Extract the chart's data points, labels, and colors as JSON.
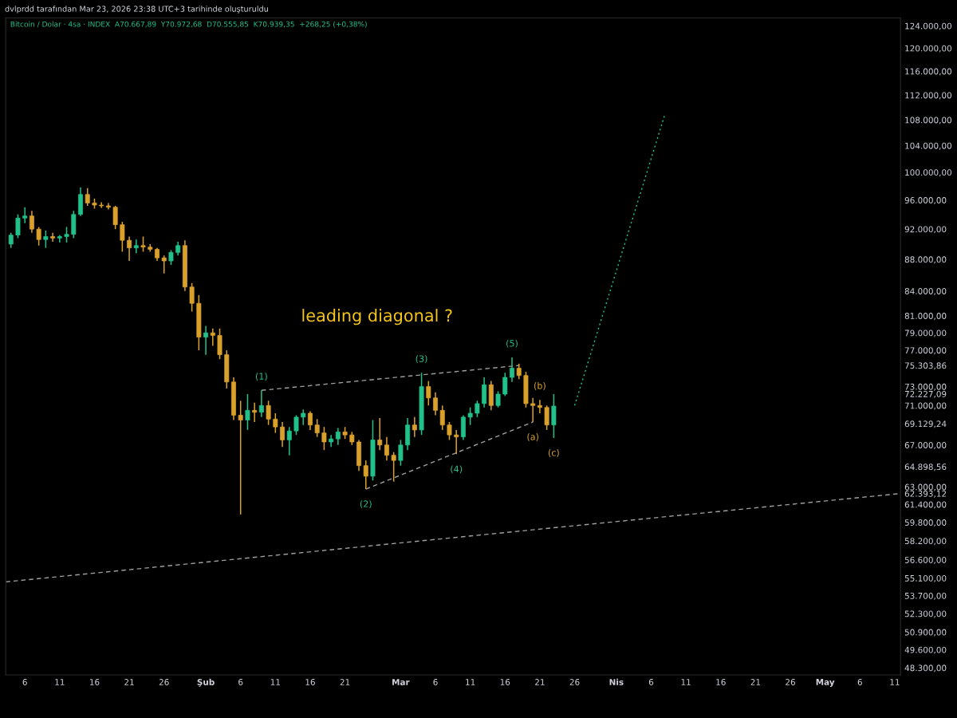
{
  "chart_data": {
    "type": "candlestick",
    "title": "dvlprdd tarafından Mar 23, 2026 23:38 UTC+3 tarihinde oluşturuldu",
    "subtitle": "Bitcoin / Dolar · 4sa · INDEX  A70.667,89  Y70.972,68  D70.555,85  K70.939,35  +268,25 (+0,38%)",
    "log": true,
    "grid": false,
    "legend": false,
    "xlim": [
      "2026-01-03T06:00",
      "2026-05-11T20:00"
    ],
    "xticks": [
      {
        "value": "2026-01-06",
        "label": "6"
      },
      {
        "value": "2026-01-11",
        "label": "11"
      },
      {
        "value": "2026-01-16",
        "label": "16"
      },
      {
        "value": "2026-01-21",
        "label": "21"
      },
      {
        "value": "2026-01-26",
        "label": "26"
      },
      {
        "value": "2026-02-01",
        "label": "Şub"
      },
      {
        "value": "2026-02-06",
        "label": "6"
      },
      {
        "value": "2026-02-11",
        "label": "11"
      },
      {
        "value": "2026-02-16",
        "label": "16"
      },
      {
        "value": "2026-02-21",
        "label": "21"
      },
      {
        "value": "2026-03-01",
        "label": "Mar"
      },
      {
        "value": "2026-03-06",
        "label": "6"
      },
      {
        "value": "2026-03-11",
        "label": "11"
      },
      {
        "value": "2026-03-16",
        "label": "16"
      },
      {
        "value": "2026-03-21",
        "label": "21"
      },
      {
        "value": "2026-03-26",
        "label": "26"
      },
      {
        "value": "2026-04-01",
        "label": "Nis"
      },
      {
        "value": "2026-04-06",
        "label": "6"
      },
      {
        "value": "2026-04-11",
        "label": "11"
      },
      {
        "value": "2026-04-16",
        "label": "16"
      },
      {
        "value": "2026-04-21",
        "label": "21"
      },
      {
        "value": "2026-04-26",
        "label": "26"
      },
      {
        "value": "2026-05-01",
        "label": "May"
      },
      {
        "value": "2026-05-06",
        "label": "6"
      },
      {
        "value": "2026-05-11",
        "label": "11"
      }
    ],
    "ylim": [
      47800,
      125450
    ],
    "yticks": [
      {
        "value": 124000,
        "label": "124.000,00"
      },
      {
        "value": 120000,
        "label": "120.000,00"
      },
      {
        "value": 116000,
        "label": "116.000,00"
      },
      {
        "value": 112000,
        "label": "112.000,00"
      },
      {
        "value": 108000,
        "label": "108.000,00"
      },
      {
        "value": 104000,
        "label": "104.000,00"
      },
      {
        "value": 100000,
        "label": "100.000,00"
      },
      {
        "value": 96000,
        "label": "96.000,00"
      },
      {
        "value": 92000,
        "label": "92.000,00"
      },
      {
        "value": 88000,
        "label": "88.000,00"
      },
      {
        "value": 84000,
        "label": "84.000,00"
      },
      {
        "value": 81000,
        "label": "81.000,00"
      },
      {
        "value": 79000,
        "label": "79.000,00"
      },
      {
        "value": 77000,
        "label": "77.000,00"
      },
      {
        "value": 75303.86,
        "label": "75.303,86"
      },
      {
        "value": 73000,
        "label": "73.000,00"
      },
      {
        "value": 72227.09,
        "label": "72.227,09"
      },
      {
        "value": 71000,
        "label": "71.000,00"
      },
      {
        "value": 69129.24,
        "label": "69.129,24"
      },
      {
        "value": 67000,
        "label": "67.000,00"
      },
      {
        "value": 64898.56,
        "label": "64.898,56"
      },
      {
        "value": 63000,
        "label": "63.000,00"
      },
      {
        "value": 62393.12,
        "label": "62.393,12"
      },
      {
        "value": 61400,
        "label": "61.400,00"
      },
      {
        "value": 59800,
        "label": "59.800,00"
      },
      {
        "value": 58200,
        "label": "58.200,00"
      },
      {
        "value": 56600,
        "label": "56.600,00"
      },
      {
        "value": 55100,
        "label": "55.100,00"
      },
      {
        "value": 53700,
        "label": "53.700,00"
      },
      {
        "value": 52300,
        "label": "52.300,00"
      },
      {
        "value": 50900,
        "label": "50.900,00"
      },
      {
        "value": 49600,
        "label": "49.600,00"
      },
      {
        "value": 48300,
        "label": "48.300,00"
      }
    ],
    "x": [
      "2026-01-04",
      "2026-01-05",
      "2026-01-06",
      "2026-01-07",
      "2026-01-08",
      "2026-01-09",
      "2026-01-10",
      "2026-01-11",
      "2026-01-12",
      "2026-01-13",
      "2026-01-14",
      "2026-01-15",
      "2026-01-16",
      "2026-01-17",
      "2026-01-18",
      "2026-01-19",
      "2026-01-20",
      "2026-01-21",
      "2026-01-22",
      "2026-01-23",
      "2026-01-24",
      "2026-01-25",
      "2026-01-26",
      "2026-01-27",
      "2026-01-28",
      "2026-01-29",
      "2026-01-30",
      "2026-01-31",
      "2026-02-01",
      "2026-02-02",
      "2026-02-03",
      "2026-02-04",
      "2026-02-05",
      "2026-02-06",
      "2026-02-07",
      "2026-02-08",
      "2026-02-09",
      "2026-02-10",
      "2026-02-11",
      "2026-02-12",
      "2026-02-13",
      "2026-02-14",
      "2026-02-15",
      "2026-02-16",
      "2026-02-17",
      "2026-02-18",
      "2026-02-19",
      "2026-02-20",
      "2026-02-21",
      "2026-02-22",
      "2026-02-23",
      "2026-02-24",
      "2026-02-25",
      "2026-02-26",
      "2026-02-27",
      "2026-02-28",
      "2026-03-01",
      "2026-03-02",
      "2026-03-03",
      "2026-03-04",
      "2026-03-05",
      "2026-03-06",
      "2026-03-07",
      "2026-03-08",
      "2026-03-09",
      "2026-03-10",
      "2026-03-11",
      "2026-03-12",
      "2026-03-13",
      "2026-03-14",
      "2026-03-15",
      "2026-03-16",
      "2026-03-17",
      "2026-03-18",
      "2026-03-19",
      "2026-03-20",
      "2026-03-21",
      "2026-03-22",
      "2026-03-23"
    ],
    "ohlc": [
      [
        90000,
        91500,
        89500,
        91200
      ],
      [
        91200,
        94000,
        90800,
        93500
      ],
      [
        93500,
        95000,
        92800,
        93800
      ],
      [
        93800,
        94500,
        91500,
        92000
      ],
      [
        92000,
        92300,
        89800,
        90600
      ],
      [
        90600,
        91800,
        89500,
        91000
      ],
      [
        91000,
        91500,
        90300,
        90800
      ],
      [
        90800,
        91200,
        90200,
        91000
      ],
      [
        91000,
        92300,
        90200,
        91300
      ],
      [
        91300,
        94500,
        90800,
        94000
      ],
      [
        94000,
        97800,
        93800,
        96800
      ],
      [
        96800,
        97700,
        95200,
        95600
      ],
      [
        95600,
        96200,
        94800,
        95300
      ],
      [
        95300,
        95700,
        94900,
        95200
      ],
      [
        95200,
        95600,
        94700,
        95000
      ],
      [
        95000,
        95200,
        92000,
        92600
      ],
      [
        92600,
        93000,
        89000,
        90500
      ],
      [
        90500,
        91000,
        87800,
        89500
      ],
      [
        89500,
        90600,
        88800,
        89800
      ],
      [
        89800,
        91000,
        89000,
        89600
      ],
      [
        89600,
        90000,
        89000,
        89300
      ],
      [
        89300,
        89500,
        87800,
        88200
      ],
      [
        88200,
        88500,
        86200,
        87800
      ],
      [
        87800,
        89200,
        87300,
        88900
      ],
      [
        88900,
        90300,
        88500,
        89800
      ],
      [
        89800,
        90500,
        84000,
        84500
      ],
      [
        84500,
        85000,
        81500,
        82500
      ],
      [
        82500,
        83500,
        77000,
        78500
      ],
      [
        78500,
        79800,
        76500,
        79000
      ],
      [
        79000,
        79500,
        77500,
        78700
      ],
      [
        78700,
        79500,
        76000,
        76500
      ],
      [
        76500,
        77000,
        72800,
        73500
      ],
      [
        73500,
        74000,
        69500,
        70000
      ],
      [
        70000,
        71500,
        60500,
        69500
      ],
      [
        69500,
        72200,
        68500,
        70500
      ],
      [
        70500,
        71300,
        69300,
        70300
      ],
      [
        70300,
        72600,
        69800,
        71000
      ],
      [
        71000,
        71500,
        69000,
        69600
      ],
      [
        69600,
        70200,
        68200,
        68800
      ],
      [
        68800,
        69300,
        66800,
        67500
      ],
      [
        67500,
        68800,
        66000,
        68400
      ],
      [
        68400,
        70000,
        68000,
        69800
      ],
      [
        69800,
        70600,
        69000,
        70200
      ],
      [
        70200,
        70400,
        68500,
        69000
      ],
      [
        69000,
        69600,
        67800,
        68200
      ],
      [
        68200,
        68800,
        66500,
        67300
      ],
      [
        67300,
        68000,
        66800,
        67600
      ],
      [
        67600,
        68700,
        67000,
        68300
      ],
      [
        68300,
        68800,
        67600,
        68000
      ],
      [
        68000,
        68300,
        67000,
        67300
      ],
      [
        67300,
        67500,
        64500,
        65000
      ],
      [
        65000,
        65500,
        62800,
        64000
      ],
      [
        64000,
        69500,
        63600,
        67500
      ],
      [
        67500,
        69700,
        66500,
        67000
      ],
      [
        67000,
        67800,
        65500,
        66000
      ],
      [
        66000,
        66300,
        63500,
        65500
      ],
      [
        65500,
        67500,
        65000,
        67000
      ],
      [
        67000,
        69700,
        66500,
        69000
      ],
      [
        69000,
        69800,
        67800,
        68500
      ],
      [
        68500,
        74500,
        68000,
        73000
      ],
      [
        73000,
        73600,
        71000,
        71800
      ],
      [
        71800,
        72400,
        70000,
        70500
      ],
      [
        70500,
        71000,
        68500,
        69000
      ],
      [
        69000,
        69300,
        67500,
        68000
      ],
      [
        68000,
        68500,
        66100,
        67800
      ],
      [
        67800,
        70000,
        67500,
        69800
      ],
      [
        69800,
        70800,
        69000,
        70200
      ],
      [
        70200,
        71500,
        69800,
        71200
      ],
      [
        71200,
        74000,
        70800,
        73200
      ],
      [
        73200,
        73600,
        70500,
        71000
      ],
      [
        71000,
        72500,
        70800,
        72200
      ],
      [
        72200,
        74500,
        72000,
        74000
      ],
      [
        74000,
        76200,
        73500,
        75000
      ],
      [
        75000,
        75500,
        73800,
        74200
      ],
      [
        74200,
        74600,
        70800,
        71200
      ],
      [
        71200,
        71800,
        69300,
        71000
      ],
      [
        71000,
        71600,
        70200,
        70800
      ],
      [
        70800,
        71000,
        68500,
        69000
      ],
      [
        69000,
        72200,
        67700,
        70939
      ]
    ],
    "colors": [
      "#22c08a",
      "#22c08a",
      "#22c08a",
      "#d9a12b",
      "#d9a12b",
      "#22c08a",
      "#d9a12b",
      "#22c08a",
      "#22c08a",
      "#22c08a",
      "#22c08a",
      "#d9a12b",
      "#d9a12b",
      "#d9a12b",
      "#d9a12b",
      "#d9a12b",
      "#d9a12b",
      "#d9a12b",
      "#22c08a",
      "#d9a12b",
      "#d9a12b",
      "#d9a12b",
      "#d9a12b",
      "#22c08a",
      "#22c08a",
      "#d9a12b",
      "#d9a12b",
      "#d9a12b",
      "#22c08a",
      "#d9a12b",
      "#d9a12b",
      "#d9a12b",
      "#d9a12b",
      "#d9a12b",
      "#22c08a",
      "#d9a12b",
      "#22c08a",
      "#d9a12b",
      "#d9a12b",
      "#d9a12b",
      "#22c08a",
      "#22c08a",
      "#22c08a",
      "#d9a12b",
      "#d9a12b",
      "#d9a12b",
      "#22c08a",
      "#22c08a",
      "#d9a12b",
      "#d9a12b",
      "#d9a12b",
      "#d9a12b",
      "#22c08a",
      "#d9a12b",
      "#d9a12b",
      "#d9a12b",
      "#22c08a",
      "#22c08a",
      "#d9a12b",
      "#22c08a",
      "#d9a12b",
      "#d9a12b",
      "#d9a12b",
      "#d9a12b",
      "#d9a12b",
      "#22c08a",
      "#22c08a",
      "#22c08a",
      "#22c08a",
      "#d9a12b",
      "#22c08a",
      "#22c08a",
      "#22c08a",
      "#d9a12b",
      "#d9a12b",
      "#d9a12b",
      "#d9a12b",
      "#d9a12b",
      "#22c08a"
    ],
    "series": [
      {
        "type": "line",
        "color": "#9e9e9e",
        "line_style": "dashed",
        "x": [
          "2026-02-09",
          "2026-03-18"
        ],
        "values": [
          72600,
          75300
        ]
      },
      {
        "type": "line",
        "color": "#9e9e9e",
        "line_style": "dashed",
        "x": [
          "2026-02-24",
          "2026-03-20"
        ],
        "values": [
          62800,
          69300
        ]
      },
      {
        "type": "line",
        "color": "#9e9e9e",
        "line_style": "dashed",
        "x": [
          "2026-01-03T06:00",
          "2026-05-11T20:00"
        ],
        "values": [
          54800,
          62393.12
        ]
      },
      {
        "type": "line",
        "color": "#22c08a",
        "line_style": "dotted",
        "x": [
          "2026-03-26",
          "2026-04-08"
        ],
        "values": [
          71000,
          109000
        ]
      }
    ],
    "annotations": [
      "leading diagonal ?",
      {
        "text": "(1)",
        "x": "2026-02-09",
        "y": 72600
      },
      {
        "text": "(2)",
        "x": "2026-02-24",
        "y": 62800
      },
      {
        "text": "(3)",
        "x": "2026-03-04",
        "y": 74500
      },
      {
        "text": "(4)",
        "x": "2026-03-09",
        "y": 66100
      },
      {
        "text": "(5)",
        "x": "2026-03-17",
        "y": 76200
      },
      {
        "text": "(a)",
        "x": "2026-03-20",
        "y": 69300
      },
      {
        "text": "(b)",
        "x": "2026-03-21",
        "y": 71600
      },
      {
        "text": "(c)",
        "x": "2026-03-23",
        "y": 67700
      }
    ]
  }
}
